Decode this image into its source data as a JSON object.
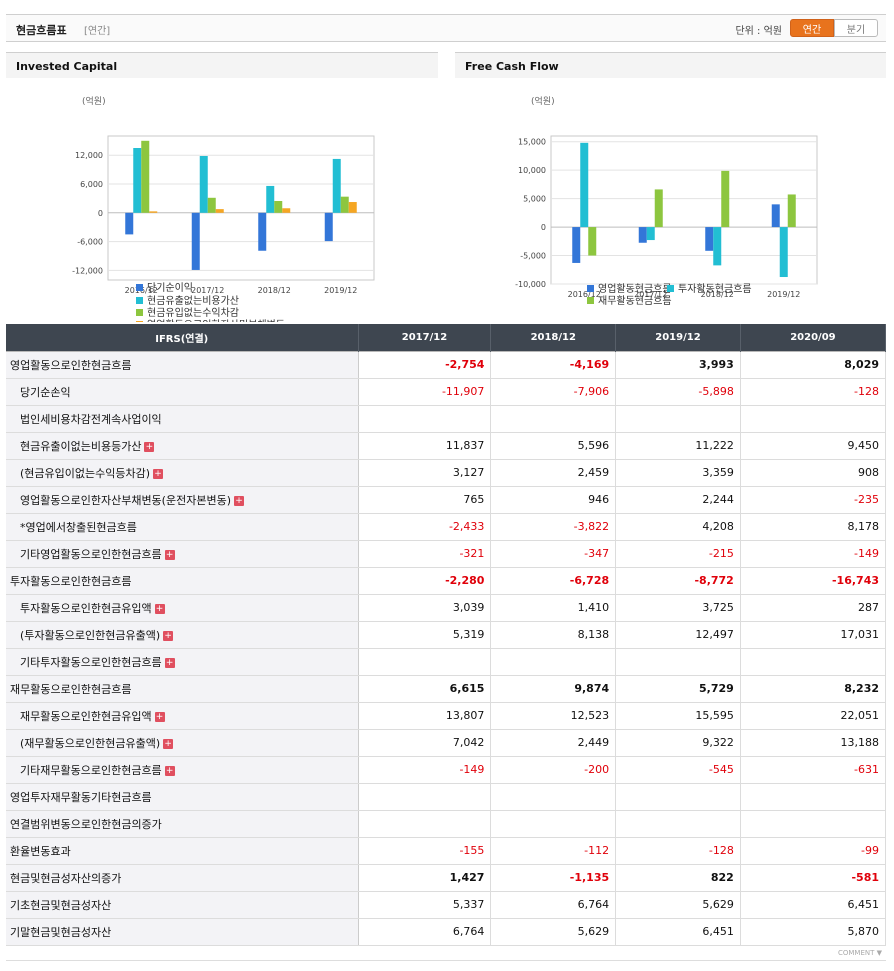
{
  "header": {
    "title": "현금흐름표",
    "subtitle": "[연간]",
    "unit_label": "단위 : 억원",
    "toggle_annual": "연간",
    "toggle_quarter": "분기"
  },
  "colors": {
    "blue": "#3376d8",
    "cyan": "#22bed3",
    "green": "#8dc63f",
    "orange": "#f5a623",
    "negative": "#e0000a"
  },
  "panels": {
    "left": {
      "title": "Invested Capital",
      "unit": "(억원)"
    },
    "right": {
      "title": "Free Cash Flow",
      "unit": "(억원)"
    }
  },
  "chart_data": [
    {
      "type": "bar",
      "title": "Invested Capital",
      "categories": [
        "2016/12",
        "2017/12",
        "2018/12",
        "2019/12"
      ],
      "ylim": [
        -14000,
        16000
      ],
      "yticks": [
        12000,
        6000,
        0,
        -6000,
        -12000
      ],
      "ytick_labels": [
        "12,000",
        "6,000",
        "0",
        "-6,000",
        "-12,000"
      ],
      "series": [
        {
          "name": "당기순이익",
          "color": "#3376d8",
          "values": [
            -4500,
            -11907,
            -7906,
            -5898
          ]
        },
        {
          "name": "현금유출없는비용가산",
          "color": "#22bed3",
          "values": [
            13500,
            11837,
            5596,
            11222
          ]
        },
        {
          "name": "현금유입없는수익차감",
          "color": "#8dc63f",
          "values": [
            15000,
            3127,
            2459,
            3359
          ]
        },
        {
          "name": "영업활동으로인한자산및부채변동",
          "color": "#f5a623",
          "values": [
            300,
            765,
            946,
            2244
          ]
        }
      ]
    },
    {
      "type": "bar",
      "title": "Free Cash Flow",
      "categories": [
        "2016/12",
        "2017/12",
        "2018/12",
        "2019/12"
      ],
      "ylim": [
        -10000,
        16000
      ],
      "yticks": [
        15000,
        10000,
        5000,
        0,
        -5000,
        -10000
      ],
      "ytick_labels": [
        "15,000",
        "10,000",
        "5,000",
        "0",
        "-5,000",
        "-10,000"
      ],
      "series": [
        {
          "name": "영업활동현금흐름",
          "color": "#3376d8",
          "values": [
            -6300,
            -2754,
            -4169,
            3993
          ]
        },
        {
          "name": "투자활동현금흐름",
          "color": "#22bed3",
          "values": [
            14800,
            -2280,
            -6728,
            -8772
          ]
        },
        {
          "name": "재무활동현금흐름",
          "color": "#8dc63f",
          "values": [
            -5000,
            6615,
            9874,
            5729
          ]
        }
      ]
    }
  ],
  "table": {
    "header_label": "IFRS(연결)",
    "columns": [
      "2017/12",
      "2018/12",
      "2019/12",
      "2020/09"
    ],
    "rows": [
      {
        "label": "영업활동으로인한현금흐름",
        "kind": "main",
        "plus": false,
        "values": [
          "-2,754",
          "-4,169",
          "3,993",
          "8,029"
        ]
      },
      {
        "label": "당기순손익",
        "kind": "sub",
        "plus": false,
        "values": [
          "-11,907",
          "-7,906",
          "-5,898",
          "-128"
        ]
      },
      {
        "label": "법인세비용차감전계속사업이익",
        "kind": "sub",
        "plus": false,
        "values": [
          "",
          "",
          "",
          ""
        ]
      },
      {
        "label": "현금유출이없는비용등가산",
        "kind": "sub",
        "plus": true,
        "values": [
          "11,837",
          "5,596",
          "11,222",
          "9,450"
        ]
      },
      {
        "label": "(현금유입이없는수익등차감)",
        "kind": "sub",
        "plus": true,
        "values": [
          "3,127",
          "2,459",
          "3,359",
          "908"
        ]
      },
      {
        "label": "영업활동으로인한자산부채변동(운전자본변동)",
        "kind": "sub",
        "plus": true,
        "values": [
          "765",
          "946",
          "2,244",
          "-235"
        ]
      },
      {
        "label": "*영업에서창출된현금흐름",
        "kind": "sub",
        "plus": false,
        "values": [
          "-2,433",
          "-3,822",
          "4,208",
          "8,178"
        ]
      },
      {
        "label": "기타영업활동으로인한현금흐름",
        "kind": "sub",
        "plus": true,
        "values": [
          "-321",
          "-347",
          "-215",
          "-149"
        ]
      },
      {
        "label": "투자활동으로인한현금흐름",
        "kind": "main",
        "plus": false,
        "values": [
          "-2,280",
          "-6,728",
          "-8,772",
          "-16,743"
        ]
      },
      {
        "label": "투자활동으로인한현금유입액",
        "kind": "sub",
        "plus": true,
        "values": [
          "3,039",
          "1,410",
          "3,725",
          "287"
        ]
      },
      {
        "label": "(투자활동으로인한현금유출액)",
        "kind": "sub",
        "plus": true,
        "values": [
          "5,319",
          "8,138",
          "12,497",
          "17,031"
        ]
      },
      {
        "label": "기타투자활동으로인한현금흐름",
        "kind": "sub",
        "plus": true,
        "values": [
          "",
          "",
          "",
          ""
        ]
      },
      {
        "label": "재무활동으로인한현금흐름",
        "kind": "main",
        "plus": false,
        "values": [
          "6,615",
          "9,874",
          "5,729",
          "8,232"
        ]
      },
      {
        "label": "재무활동으로인한현금유입액",
        "kind": "sub",
        "plus": true,
        "values": [
          "13,807",
          "12,523",
          "15,595",
          "22,051"
        ]
      },
      {
        "label": "(재무활동으로인한현금유출액)",
        "kind": "sub",
        "plus": true,
        "values": [
          "7,042",
          "2,449",
          "9,322",
          "13,188"
        ]
      },
      {
        "label": "기타재무활동으로인한현금흐름",
        "kind": "sub",
        "plus": true,
        "values": [
          "-149",
          "-200",
          "-545",
          "-631"
        ]
      },
      {
        "label": "영업투자재무활동기타현금흐름",
        "kind": "plain",
        "plus": false,
        "values": [
          "",
          "",
          "",
          ""
        ]
      },
      {
        "label": "연결범위변동으로인한현금의증가",
        "kind": "plain",
        "plus": false,
        "values": [
          "",
          "",
          "",
          ""
        ]
      },
      {
        "label": "환율변동효과",
        "kind": "plain",
        "plus": false,
        "values": [
          "-155",
          "-112",
          "-128",
          "-99"
        ]
      },
      {
        "label": "현금및현금성자산의증가",
        "kind": "main",
        "plus": false,
        "values": [
          "1,427",
          "-1,135",
          "822",
          "-581"
        ]
      },
      {
        "label": "기초현금및현금성자산",
        "kind": "plain",
        "plus": false,
        "values": [
          "5,337",
          "6,764",
          "5,629",
          "6,451"
        ]
      },
      {
        "label": "기말현금및현금성자산",
        "kind": "plain",
        "plus": false,
        "values": [
          "6,764",
          "5,629",
          "6,451",
          "5,870"
        ]
      }
    ]
  },
  "footer": {
    "comment_label": "COMMENT ▼"
  }
}
